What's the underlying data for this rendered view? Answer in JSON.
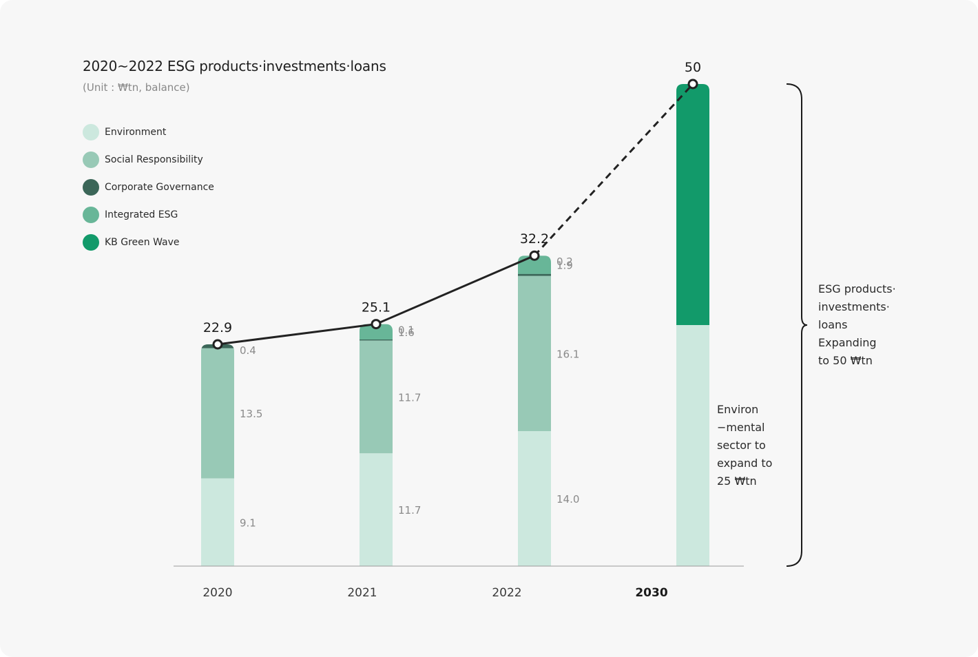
{
  "chart_data": {
    "type": "bar",
    "title": "2020~2022 ESG products·investments·loans",
    "subtitle": "(Unit : ₩tn, balance)",
    "categories": [
      "2020",
      "2021",
      "2022",
      "2030"
    ],
    "ylim": [
      0,
      50
    ],
    "series": [
      {
        "name": "Environment",
        "color": "#cce8de",
        "values": [
          9.1,
          11.7,
          14.0,
          25
        ],
        "labels": [
          "9.1",
          "11.7",
          "14.0",
          ""
        ]
      },
      {
        "name": "Social Responsibility",
        "color": "#98c9b6",
        "values": [
          13.5,
          11.7,
          16.1,
          0
        ],
        "labels": [
          "13.5",
          "11.7",
          "16.1",
          ""
        ]
      },
      {
        "name": "Corporate Governance",
        "color": "#3b6658",
        "values": [
          0.4,
          0.1,
          0.2,
          0
        ],
        "labels": [
          "0.4",
          "0.1",
          "0.2",
          ""
        ]
      },
      {
        "name": "Integrated ESG",
        "color": "#68b698",
        "values": [
          0,
          1.6,
          1.9,
          0
        ],
        "labels": [
          "",
          "1.6",
          "1.9",
          ""
        ]
      },
      {
        "name": "KB Green Wave",
        "color": "#129a6a",
        "values": [
          0,
          0,
          0,
          25
        ],
        "labels": [
          "",
          "",
          "",
          ""
        ]
      }
    ],
    "totals": [
      22.9,
      25.1,
      32.2,
      50
    ],
    "total_labels": [
      "22.9",
      "25.1",
      "32.2",
      "50"
    ],
    "projected_category": "2030",
    "line": {
      "color": "#222222",
      "projected_style": "dashed"
    }
  },
  "notes": {
    "environment_lines": [
      "Environ",
      "−mental",
      "sector to",
      "expand to",
      "25 ₩tn"
    ],
    "total_lines": [
      "ESG products·",
      "investments·",
      "loans",
      "Expanding",
      "to 50 ₩tn"
    ]
  }
}
